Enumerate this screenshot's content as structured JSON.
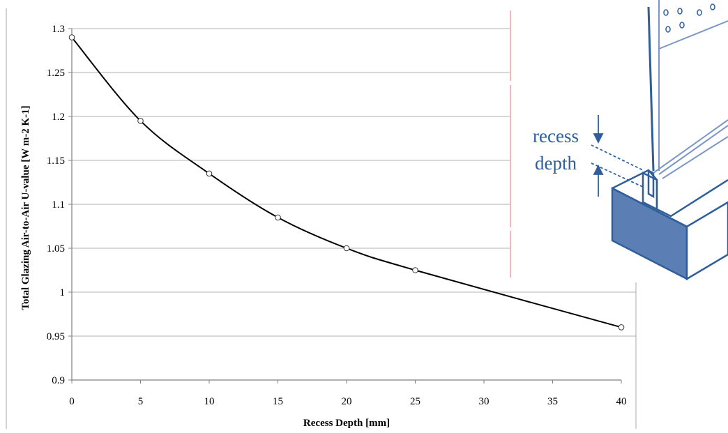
{
  "chart_data": {
    "type": "line",
    "title": "",
    "xlabel": "Recess Depth [mm]",
    "ylabel": "Total Glazing Air-to-Air U-value [W m-2 K-1]",
    "xlim": [
      0,
      40
    ],
    "ylim": [
      0.9,
      1.3
    ],
    "x_ticks": [
      "0",
      "5",
      "10",
      "15",
      "20",
      "25",
      "30",
      "35",
      "40"
    ],
    "y_ticks": [
      "0.9",
      "0.95",
      "1",
      "1.05",
      "1.1",
      "1.15",
      "1.2",
      "1.25",
      "1.3"
    ],
    "grid": "horizontal",
    "series": [
      {
        "x": [
          0,
          5,
          10,
          15,
          20,
          25,
          40
        ],
        "y": [
          1.29,
          1.195,
          1.135,
          1.085,
          1.05,
          1.025,
          0.96
        ]
      }
    ],
    "colors": {
      "line": "#000000",
      "grid": "#b0b0b0",
      "accent": "#2e5f9a",
      "accent_fill": "#5b7fb5"
    }
  },
  "inset": {
    "label_line1": "recess",
    "label_line2": "depth"
  }
}
